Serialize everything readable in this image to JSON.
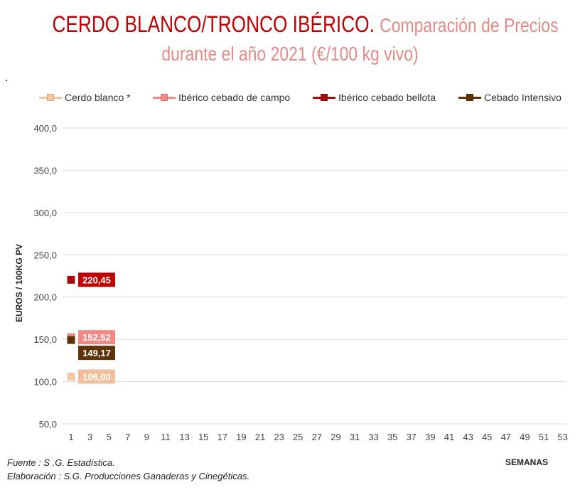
{
  "title": {
    "main": "CERDO BLANCO/TRONCO IBÉRICO.",
    "sub_part1": "Comparación de Precios",
    "sub_part2": "durante el año 2021 (€/100 kg vivo)"
  },
  "footer": {
    "source": "Fuente :  S .G. Estadística.",
    "elaboration": "Elaboración : S.G. Producciones Ganaderas y Cinegéticas."
  },
  "chart_data": {
    "type": "line",
    "xlabel": "SEMANAS",
    "ylabel": "EUROS / 100KG PV",
    "ylim": [
      50,
      400
    ],
    "y_ticks": [
      "50,0",
      "100,0",
      "150,0",
      "200,0",
      "250,0",
      "300,0",
      "350,0",
      "400,0"
    ],
    "x_ticks": [
      "1",
      "3",
      "5",
      "7",
      "9",
      "11",
      "13",
      "15",
      "17",
      "19",
      "21",
      "23",
      "25",
      "27",
      "29",
      "31",
      "33",
      "35",
      "37",
      "39",
      "41",
      "43",
      "45",
      "47",
      "49",
      "51",
      "53"
    ],
    "grid": "horizontal",
    "legend_position": "top",
    "series": [
      {
        "name": "Cerdo blanco *",
        "color": "#f4c6a2",
        "label_color": "#f2bf9c",
        "x": [
          1
        ],
        "values": [
          106.0
        ],
        "data_labels": [
          "106,00"
        ]
      },
      {
        "name": "Ibérico cebado de campo",
        "color": "#f08a86",
        "label_color": "#f08a86",
        "x": [
          1
        ],
        "values": [
          152.52
        ],
        "data_labels": [
          "152,52"
        ]
      },
      {
        "name": "Ibérico cebado bellota",
        "color": "#a80b0b",
        "label_color": "#c00000",
        "x": [
          1
        ],
        "values": [
          220.45
        ],
        "data_labels": [
          "220,45"
        ]
      },
      {
        "name": "Cebado Intensivo",
        "color": "#5c3207",
        "label_color": "#603309",
        "x": [
          1
        ],
        "values": [
          149.17
        ],
        "data_labels": [
          "149,17"
        ]
      }
    ]
  }
}
